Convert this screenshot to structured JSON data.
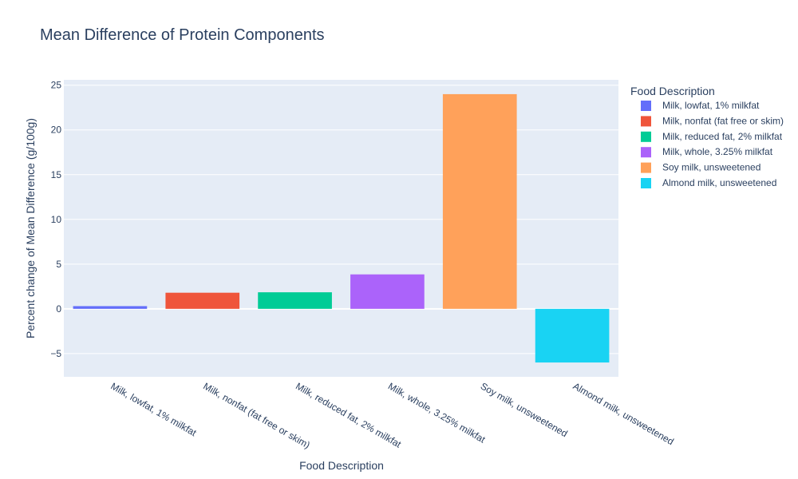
{
  "chart_data": {
    "type": "bar",
    "title": "Mean Difference of Protein Components",
    "xlabel": "Food Description",
    "ylabel": "Percent change of Mean Difference (g/100g)",
    "categories": [
      "Milk, lowfat, 1% milkfat",
      "Milk, nonfat (fat free or skim)",
      "Milk, reduced fat, 2% milkfat",
      "Milk, whole, 3.25% milkfat",
      "Soy milk, unsweetened",
      "Almond milk, unsweetened"
    ],
    "values": [
      0.3,
      1.8,
      1.85,
      3.85,
      24.0,
      -6.0
    ],
    "colors": [
      "#636efa",
      "#EF553B",
      "#00cc96",
      "#ab63fa",
      "#FFA15A",
      "#19d3f3"
    ],
    "ylim": [
      -7.6,
      25.6
    ],
    "yticks": [
      -5,
      0,
      5,
      10,
      15,
      20,
      25
    ],
    "ytick_labels": [
      "−5",
      "0",
      "5",
      "10",
      "15",
      "20",
      "25"
    ],
    "grid": true,
    "legend": {
      "title": "Food Description",
      "placement": "right",
      "entries": [
        "Milk, lowfat, 1% milkfat",
        "Milk, nonfat (fat free or skim)",
        "Milk, reduced fat, 2% milkfat",
        "Milk, whole, 3.25% milkfat",
        "Soy milk, unsweetened",
        "Almond milk, unsweetened"
      ]
    }
  }
}
